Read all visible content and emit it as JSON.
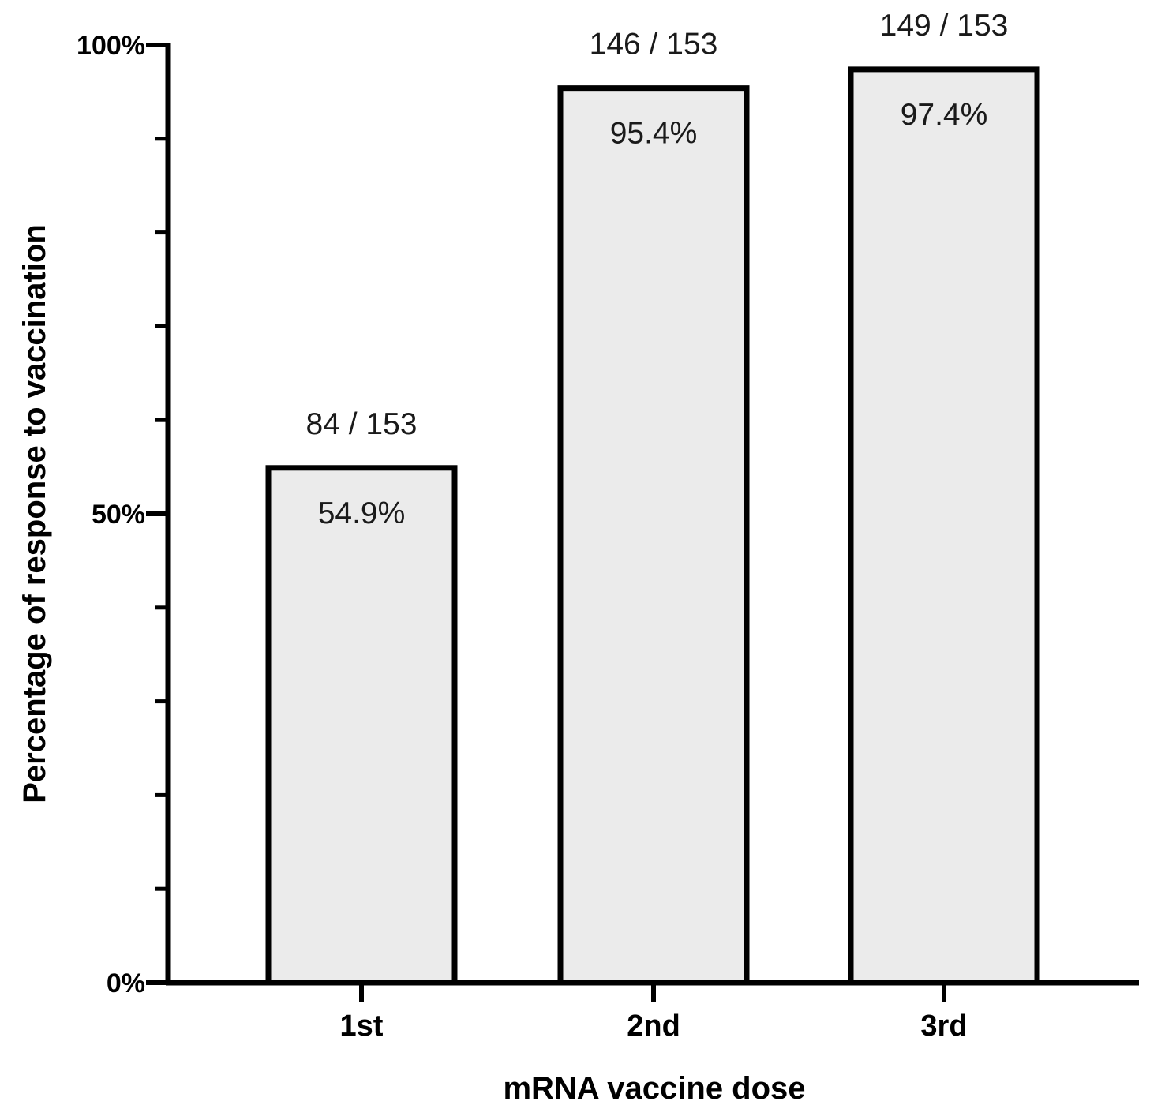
{
  "chart_data": {
    "type": "bar",
    "categories": [
      "1st",
      "2nd",
      "3rd"
    ],
    "values": [
      54.9,
      95.4,
      97.4
    ],
    "value_labels": [
      "54.9%",
      "95.4%",
      "97.4%"
    ],
    "count_labels": [
      "84 / 153",
      "146 / 153",
      "149 / 153"
    ],
    "xlabel": "mRNA vaccine dose",
    "ylabel": "Percentage of response to vaccination",
    "ylim": [
      0,
      100
    ],
    "y_major_ticks": [
      0,
      50,
      100
    ],
    "y_tick_labels": [
      "0%",
      "50%",
      "100%"
    ],
    "y_minor_ticks": [
      10,
      20,
      30,
      40,
      60,
      70,
      80,
      90
    ],
    "grid": false,
    "legend": "none",
    "colors": {
      "bar_fill": "#ebebeb",
      "bar_stroke": "#000000",
      "axis": "#000000"
    }
  }
}
